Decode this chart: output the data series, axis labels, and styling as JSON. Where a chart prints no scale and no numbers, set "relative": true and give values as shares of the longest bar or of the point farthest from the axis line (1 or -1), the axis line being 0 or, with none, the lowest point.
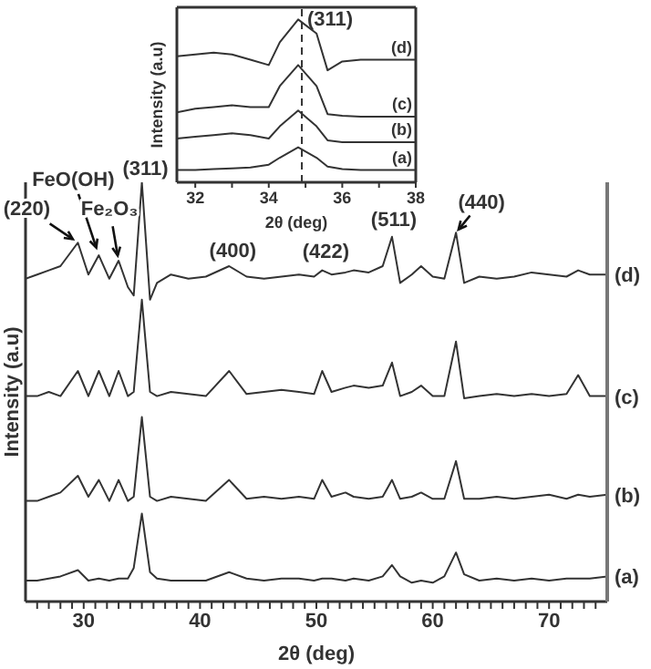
{
  "chart_data": [
    {
      "type": "line",
      "relative": true,
      "xlabel": "2θ (deg)",
      "ylabel": "Intensity (a.u)",
      "xlim": [
        25,
        75
      ],
      "xticks": [
        {
          "value": 26,
          "label": null
        },
        {
          "value": 27,
          "label": null
        },
        {
          "value": 28,
          "label": null
        },
        {
          "value": 29,
          "label": null
        },
        30,
        {
          "value": 31,
          "label": null
        },
        {
          "value": 32,
          "label": null
        },
        {
          "value": 33,
          "label": null
        },
        {
          "value": 34,
          "label": null
        },
        {
          "value": 35,
          "label": null
        },
        {
          "value": 36,
          "label": null
        },
        {
          "value": 37,
          "label": null
        },
        {
          "value": 38,
          "label": null
        },
        {
          "value": 39,
          "label": null
        },
        40,
        {
          "value": 41,
          "label": null
        },
        {
          "value": 42,
          "label": null
        },
        {
          "value": 43,
          "label": null
        },
        {
          "value": 44,
          "label": null
        },
        {
          "value": 45,
          "label": null
        },
        {
          "value": 46,
          "label": null
        },
        {
          "value": 47,
          "label": null
        },
        {
          "value": 48,
          "label": null
        },
        {
          "value": 49,
          "label": null
        },
        50,
        {
          "value": 51,
          "label": null
        },
        {
          "value": 52,
          "label": null
        },
        {
          "value": 53,
          "label": null
        },
        {
          "value": 54,
          "label": null
        },
        {
          "value": 55,
          "label": null
        },
        {
          "value": 56,
          "label": null
        },
        {
          "value": 57,
          "label": null
        },
        {
          "value": 58,
          "label": null
        },
        {
          "value": 59,
          "label": null
        },
        60,
        {
          "value": 61,
          "label": null
        },
        {
          "value": 62,
          "label": null
        },
        {
          "value": 63,
          "label": null
        },
        {
          "value": 64,
          "label": null
        },
        {
          "value": 65,
          "label": null
        },
        {
          "value": 66,
          "label": null
        },
        {
          "value": 67,
          "label": null
        },
        {
          "value": 68,
          "label": null
        },
        {
          "value": 69,
          "label": null
        },
        70,
        {
          "value": 71,
          "label": null
        },
        {
          "value": 72,
          "label": null
        },
        {
          "value": 73,
          "label": null
        },
        {
          "value": 74,
          "label": null
        }
      ],
      "x": [
        25,
        26,
        27,
        28,
        29.5,
        30.4,
        31.3,
        32.2,
        33,
        33.8,
        34.3,
        35,
        35.7,
        36.3,
        37.5,
        39,
        40.5,
        42.5,
        44,
        45.5,
        47,
        48.5,
        49.8,
        50.5,
        51.3,
        52.5,
        53.2,
        54.5,
        55.7,
        56.5,
        57.2,
        58.2,
        59,
        60,
        61,
        62,
        62.7,
        64,
        65.5,
        67,
        68.5,
        70,
        71.5,
        72.5,
        73.5,
        75
      ],
      "series": [
        {
          "name": "(a)",
          "color": "#333333",
          "values": [
            0.05,
            0.05,
            0.055,
            0.06,
            0.075,
            0.05,
            0.055,
            0.05,
            0.055,
            0.055,
            0.08,
            0.21,
            0.07,
            0.055,
            0.05,
            0.05,
            0.05,
            0.07,
            0.055,
            0.05,
            0.055,
            0.055,
            0.05,
            0.055,
            0.055,
            0.05,
            0.055,
            0.05,
            0.06,
            0.087,
            0.06,
            0.045,
            0.05,
            0.045,
            0.06,
            0.117,
            0.065,
            0.05,
            0.055,
            0.05,
            0.055,
            0.05,
            0.055,
            0.055,
            0.055,
            0.06
          ]
        },
        {
          "name": "(b)",
          "color": "#333333",
          "values": [
            0.24,
            0.24,
            0.25,
            0.26,
            0.3,
            0.25,
            0.29,
            0.24,
            0.29,
            0.24,
            0.25,
            0.44,
            0.25,
            0.24,
            0.25,
            0.245,
            0.24,
            0.29,
            0.245,
            0.25,
            0.245,
            0.25,
            0.245,
            0.29,
            0.25,
            0.26,
            0.25,
            0.245,
            0.25,
            0.29,
            0.245,
            0.25,
            0.26,
            0.245,
            0.245,
            0.335,
            0.245,
            0.245,
            0.25,
            0.245,
            0.25,
            0.255,
            0.245,
            0.255,
            0.25,
            0.255
          ]
        },
        {
          "name": "(c)",
          "color": "#333333",
          "values": [
            0.49,
            0.49,
            0.5,
            0.49,
            0.55,
            0.49,
            0.55,
            0.49,
            0.55,
            0.49,
            0.5,
            0.72,
            0.5,
            0.49,
            0.5,
            0.495,
            0.49,
            0.55,
            0.495,
            0.5,
            0.505,
            0.5,
            0.495,
            0.55,
            0.5,
            0.51,
            0.515,
            0.51,
            0.515,
            0.57,
            0.49,
            0.5,
            0.515,
            0.49,
            0.49,
            0.62,
            0.485,
            0.49,
            0.495,
            0.49,
            0.495,
            0.49,
            0.495,
            0.54,
            0.49,
            0.49
          ]
        },
        {
          "name": "(d)",
          "color": "#333333",
          "values": [
            0.77,
            0.78,
            0.79,
            0.8,
            0.856,
            0.78,
            0.826,
            0.77,
            0.813,
            0.75,
            0.73,
            1.0,
            0.72,
            0.76,
            0.78,
            0.77,
            0.775,
            0.8,
            0.775,
            0.77,
            0.775,
            0.78,
            0.775,
            0.79,
            0.78,
            0.785,
            0.79,
            0.785,
            0.8,
            0.87,
            0.76,
            0.78,
            0.8,
            0.775,
            0.77,
            0.88,
            0.76,
            0.775,
            0.77,
            0.775,
            0.785,
            0.78,
            0.775,
            0.79,
            0.78,
            0.78
          ]
        }
      ],
      "annotations": [
        {
          "text": "(220)",
          "x": 29.5,
          "y": 0.856
        },
        {
          "text": "FeO(OH)",
          "x": 31.3,
          "y": 0.826
        },
        {
          "text": "Fe₂O₃",
          "x": 33,
          "y": 0.813
        },
        {
          "text": "(311)",
          "x": 35,
          "y": 1.0
        },
        {
          "text": "(400)",
          "x": 42.5,
          "y": 0.8
        },
        {
          "text": "(422)",
          "x": 50.5,
          "y": 0.79
        },
        {
          "text": "(511)",
          "x": 56.5,
          "y": 0.87
        },
        {
          "text": "(440)",
          "x": 62,
          "y": 0.88
        }
      ]
    },
    {
      "type": "line",
      "relative": true,
      "xlabel": "2θ (deg)",
      "ylabel": "Intensity (a.u)",
      "xlim": [
        31.5,
        38
      ],
      "xticks": [
        32,
        {
          "value": 33,
          "label": null
        },
        34,
        {
          "value": 35,
          "label": null
        },
        36,
        {
          "value": 37,
          "label": null
        },
        38
      ],
      "x": [
        31.5,
        32,
        32.5,
        33,
        33.5,
        34,
        34.3,
        34.8,
        35.3,
        35.6,
        36,
        36.5,
        37,
        37.5,
        38
      ],
      "series": [
        {
          "name": "(a)",
          "color": "#333333",
          "values": [
            0.075,
            0.075,
            0.081,
            0.086,
            0.091,
            0.108,
            0.151,
            0.215,
            0.151,
            0.097,
            0.081,
            0.075,
            0.075,
            0.075,
            0.075
          ]
        },
        {
          "name": "(b)",
          "color": "#333333",
          "values": [
            0.269,
            0.28,
            0.29,
            0.301,
            0.29,
            0.269,
            0.344,
            0.441,
            0.344,
            0.258,
            0.247,
            0.247,
            0.247,
            0.247,
            0.247
          ]
        },
        {
          "name": "(c)",
          "color": "#333333",
          "values": [
            0.43,
            0.452,
            0.462,
            0.473,
            0.462,
            0.462,
            0.591,
            0.72,
            0.591,
            0.419,
            0.409,
            0.403,
            0.403,
            0.403,
            0.403
          ]
        },
        {
          "name": "(d)",
          "color": "#333333",
          "values": [
            0.774,
            0.785,
            0.796,
            0.785,
            0.753,
            0.72,
            0.86,
            1.0,
            0.914,
            0.688,
            0.742,
            0.753,
            0.753,
            0.753,
            0.753
          ]
        }
      ],
      "ref_lines": [
        {
          "axis": "x",
          "value": 34.9,
          "line_style": "dashed",
          "color": "#333333"
        }
      ],
      "annotations": [
        "(311)"
      ]
    }
  ]
}
